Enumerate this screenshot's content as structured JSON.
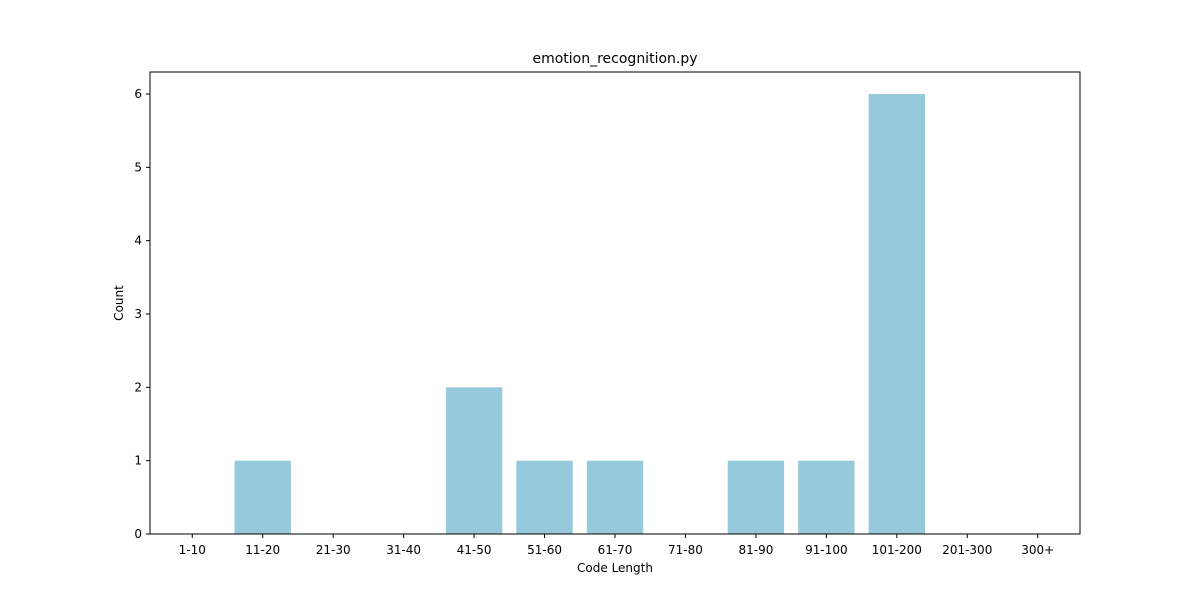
{
  "chart_data": {
    "type": "bar",
    "title": "emotion_recognition.py",
    "xlabel": "Code Length",
    "ylabel": "Count",
    "categories": [
      "1-10",
      "11-20",
      "21-30",
      "31-40",
      "41-50",
      "51-60",
      "61-70",
      "71-80",
      "81-90",
      "91-100",
      "101-200",
      "201-300",
      "300+"
    ],
    "values": [
      0,
      1,
      0,
      0,
      2,
      1,
      1,
      0,
      1,
      1,
      6,
      0,
      0
    ],
    "yticks": [
      0,
      1,
      2,
      3,
      4,
      5,
      6
    ],
    "ylim": [
      0,
      6.3
    ],
    "bar_color": "#96c9dc",
    "grid": false,
    "legend": "none"
  }
}
